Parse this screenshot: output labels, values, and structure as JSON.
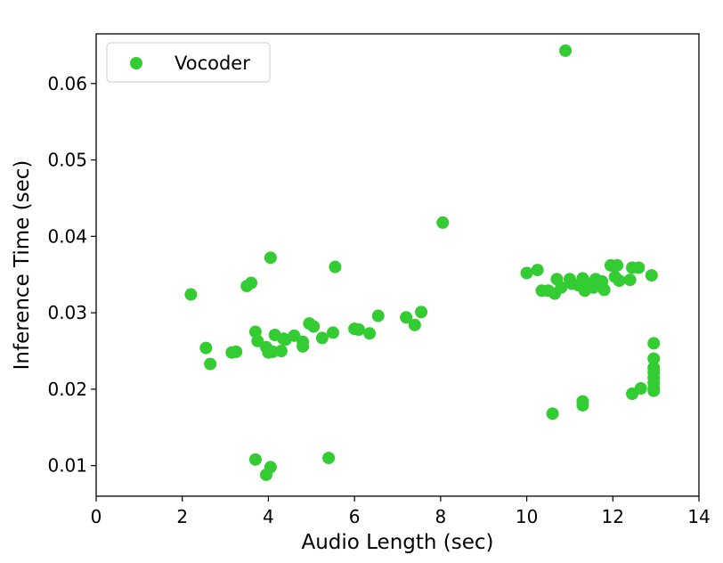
{
  "chart_data": {
    "type": "scatter",
    "title": "",
    "xlabel": "Audio Length (sec)",
    "ylabel": "Inference Time (sec)",
    "xlim": [
      0,
      14
    ],
    "ylim": [
      0.006,
      0.0665
    ],
    "xticks": [
      0,
      2,
      4,
      6,
      8,
      10,
      12,
      14
    ],
    "xtick_labels": [
      "0",
      "2",
      "4",
      "6",
      "8",
      "10",
      "12",
      "14"
    ],
    "yticks": [
      0.01,
      0.02,
      0.03,
      0.04,
      0.05,
      0.06
    ],
    "ytick_labels": [
      "0.01",
      "0.02",
      "0.03",
      "0.04",
      "0.05",
      "0.06"
    ],
    "grid": false,
    "legend": {
      "position": "top-left",
      "entries": [
        "Vocoder"
      ]
    },
    "series": [
      {
        "name": "Vocoder",
        "color": "#33cc33",
        "points": [
          [
            2.2,
            0.0324
          ],
          [
            2.55,
            0.0254
          ],
          [
            2.65,
            0.0233
          ],
          [
            3.15,
            0.0248
          ],
          [
            3.25,
            0.0249
          ],
          [
            3.5,
            0.0335
          ],
          [
            3.6,
            0.0339
          ],
          [
            3.7,
            0.0275
          ],
          [
            3.75,
            0.0263
          ],
          [
            3.7,
            0.0108
          ],
          [
            3.95,
            0.0088
          ],
          [
            4.05,
            0.0098
          ],
          [
            4.05,
            0.0372
          ],
          [
            3.95,
            0.0255
          ],
          [
            4.0,
            0.0248
          ],
          [
            4.1,
            0.0249
          ],
          [
            4.15,
            0.0271
          ],
          [
            4.3,
            0.025
          ],
          [
            4.35,
            0.0266
          ],
          [
            4.4,
            0.0265
          ],
          [
            4.6,
            0.027
          ],
          [
            4.8,
            0.0256
          ],
          [
            4.8,
            0.0262
          ],
          [
            4.95,
            0.0286
          ],
          [
            5.05,
            0.0282
          ],
          [
            5.25,
            0.0267
          ],
          [
            5.4,
            0.011
          ],
          [
            5.5,
            0.0274
          ],
          [
            5.55,
            0.036
          ],
          [
            6.0,
            0.0279
          ],
          [
            6.1,
            0.0278
          ],
          [
            6.35,
            0.0273
          ],
          [
            6.55,
            0.0296
          ],
          [
            7.2,
            0.0294
          ],
          [
            7.4,
            0.0284
          ],
          [
            7.55,
            0.0301
          ],
          [
            8.05,
            0.0418
          ],
          [
            10.0,
            0.0352
          ],
          [
            10.25,
            0.0356
          ],
          [
            10.35,
            0.0329
          ],
          [
            10.5,
            0.0329
          ],
          [
            10.6,
            0.0168
          ],
          [
            10.65,
            0.0325
          ],
          [
            10.7,
            0.0344
          ],
          [
            10.8,
            0.0333
          ],
          [
            10.9,
            0.0643
          ],
          [
            11.0,
            0.0344
          ],
          [
            11.05,
            0.0338
          ],
          [
            11.2,
            0.0336
          ],
          [
            11.3,
            0.0345
          ],
          [
            11.3,
            0.0184
          ],
          [
            11.3,
            0.0179
          ],
          [
            11.35,
            0.0329
          ],
          [
            11.45,
            0.0338
          ],
          [
            11.55,
            0.0333
          ],
          [
            11.6,
            0.0344
          ],
          [
            11.75,
            0.0341
          ],
          [
            11.8,
            0.033
          ],
          [
            11.95,
            0.0362
          ],
          [
            12.05,
            0.0347
          ],
          [
            12.1,
            0.0362
          ],
          [
            12.15,
            0.0342
          ],
          [
            12.4,
            0.0343
          ],
          [
            12.45,
            0.0359
          ],
          [
            12.45,
            0.0194
          ],
          [
            12.6,
            0.0359
          ],
          [
            12.65,
            0.0201
          ],
          [
            12.9,
            0.0349
          ],
          [
            12.95,
            0.026
          ],
          [
            12.95,
            0.024
          ],
          [
            12.95,
            0.0228
          ],
          [
            12.95,
            0.0222
          ],
          [
            12.95,
            0.0215
          ],
          [
            12.95,
            0.0208
          ],
          [
            12.95,
            0.0201
          ],
          [
            12.95,
            0.0198
          ]
        ]
      }
    ]
  }
}
